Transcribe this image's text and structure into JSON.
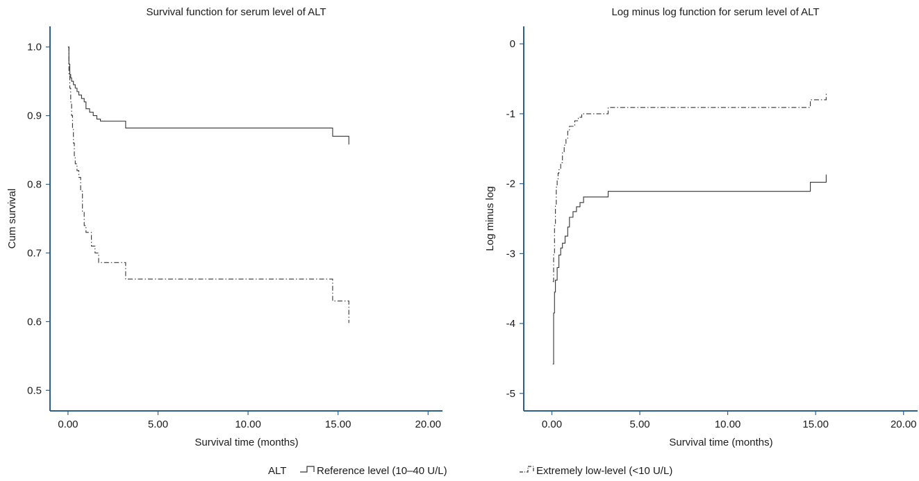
{
  "colors": {
    "axis": "#2b5e8c",
    "line": "#333333",
    "text": "#1a1a1a"
  },
  "legend": {
    "title": "ALT",
    "entries": [
      {
        "label": "Reference level (10–40 U/L)",
        "style": "solid"
      },
      {
        "label": "Extremely low-level (<10 U/L)",
        "style": "dashdot"
      }
    ]
  },
  "chart_data": [
    {
      "type": "line",
      "step": true,
      "title": "Survival function for serum level of ALT",
      "xlabel": "Survival time (months)",
      "ylabel": "Cum survival",
      "xlim": [
        -1.0,
        20.8
      ],
      "ylim": [
        0.47,
        1.03
      ],
      "xticks": [
        0,
        5,
        10,
        15,
        20
      ],
      "xtick_labels": [
        "0.00",
        "5.00",
        "10.00",
        "15.00",
        "20.00"
      ],
      "yticks": [
        0.5,
        0.6,
        0.7,
        0.8,
        0.9,
        1.0
      ],
      "ytick_labels": [
        "0.5",
        "0.6",
        "0.7",
        "0.8",
        "0.9",
        "1.0"
      ],
      "grid": false,
      "series": [
        {
          "name": "Reference level (10–40 U/L)",
          "style": "solid",
          "x": [
            0,
            0.05,
            0.1,
            0.15,
            0.2,
            0.3,
            0.4,
            0.5,
            0.6,
            0.75,
            0.9,
            1.0,
            1.2,
            1.4,
            1.6,
            1.8,
            3.2,
            14.7,
            15.6
          ],
          "y": [
            1.0,
            0.975,
            0.96,
            0.955,
            0.95,
            0.945,
            0.94,
            0.935,
            0.93,
            0.925,
            0.92,
            0.91,
            0.905,
            0.9,
            0.895,
            0.892,
            0.882,
            0.87,
            0.858
          ]
        },
        {
          "name": "Extremely low-level (<10 U/L)",
          "style": "dashdot",
          "x": [
            0,
            0.05,
            0.1,
            0.15,
            0.2,
            0.25,
            0.3,
            0.35,
            0.4,
            0.5,
            0.6,
            0.7,
            0.8,
            0.9,
            1.0,
            1.3,
            1.5,
            1.7,
            3.2,
            14.7,
            15.6
          ],
          "y": [
            1.0,
            0.96,
            0.94,
            0.92,
            0.9,
            0.88,
            0.86,
            0.84,
            0.83,
            0.82,
            0.81,
            0.79,
            0.76,
            0.74,
            0.73,
            0.71,
            0.7,
            0.686,
            0.662,
            0.63,
            0.598
          ]
        }
      ]
    },
    {
      "type": "line",
      "step": true,
      "title": "Log minus log function for serum level of ALT",
      "xlabel": "Survival time (months)",
      "ylabel": "Log minus log",
      "xlim": [
        -1.6,
        20.8
      ],
      "ylim": [
        -5.25,
        0.25
      ],
      "xticks": [
        0,
        5,
        10,
        15,
        20
      ],
      "xtick_labels": [
        "0.00",
        "5.00",
        "10.00",
        "15.00",
        "20.00"
      ],
      "yticks": [
        -5,
        -4,
        -3,
        -2,
        -1,
        0
      ],
      "ytick_labels": [
        "-5",
        "-4",
        "-3",
        "-2",
        "-1",
        "0"
      ],
      "grid": false,
      "series": [
        {
          "name": "Reference level (10–40 U/L)",
          "style": "solid",
          "x": [
            0.05,
            0.1,
            0.15,
            0.2,
            0.3,
            0.4,
            0.5,
            0.6,
            0.75,
            0.9,
            1.0,
            1.2,
            1.4,
            1.6,
            1.8,
            3.2,
            14.7,
            15.6
          ],
          "y": [
            -4.58,
            -3.85,
            -3.55,
            -3.38,
            -3.2,
            -3.02,
            -2.92,
            -2.85,
            -2.75,
            -2.62,
            -2.48,
            -2.4,
            -2.33,
            -2.27,
            -2.19,
            -2.11,
            -1.98,
            -1.87
          ]
        },
        {
          "name": "Extremely low-level (<10 U/L)",
          "style": "dashdot",
          "x": [
            0.05,
            0.1,
            0.15,
            0.2,
            0.25,
            0.3,
            0.35,
            0.4,
            0.5,
            0.6,
            0.7,
            0.8,
            0.9,
            1.0,
            1.3,
            1.5,
            1.7,
            3.2,
            14.7,
            15.6
          ],
          "y": [
            -3.4,
            -3.0,
            -2.6,
            -2.3,
            -2.05,
            -1.95,
            -1.85,
            -1.8,
            -1.7,
            -1.55,
            -1.45,
            -1.35,
            -1.25,
            -1.18,
            -1.1,
            -1.05,
            -1.0,
            -0.91,
            -0.8,
            -0.7
          ]
        }
      ]
    }
  ]
}
